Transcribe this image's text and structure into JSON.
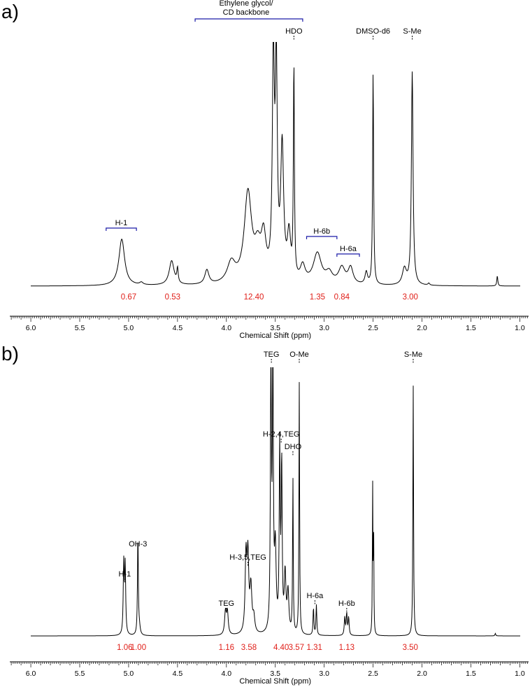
{
  "chart_data": [
    {
      "type": "line",
      "panel_label": "a)",
      "xlabel": "Chemical Shift (ppm)",
      "xlim": [
        6.0,
        1.0
      ],
      "x_ticks": [
        "6.0",
        "5.5",
        "5.0",
        "4.5",
        "4.0",
        "3.5",
        "3.0",
        "2.5",
        "2.0",
        "1.5",
        "1.0"
      ],
      "x_tick_values": [
        6.0,
        5.5,
        5.0,
        4.5,
        4.0,
        3.5,
        3.0,
        2.5,
        2.0,
        1.5,
        1.0
      ],
      "peaks": [
        {
          "ppm": 5.07,
          "h": 0.23,
          "w": 0.035
        },
        {
          "ppm": 4.87,
          "h": 0.012,
          "w": 0.02
        },
        {
          "ppm": 4.56,
          "h": 0.12,
          "w": 0.03
        },
        {
          "ppm": 4.5,
          "h": 0.07,
          "w": 0.008
        },
        {
          "ppm": 4.2,
          "h": 0.07,
          "w": 0.025
        },
        {
          "ppm": 3.95,
          "h": 0.1,
          "w": 0.05
        },
        {
          "ppm": 3.78,
          "h": 0.44,
          "w": 0.045
        },
        {
          "ppm": 3.68,
          "h": 0.14,
          "w": 0.04
        },
        {
          "ppm": 3.62,
          "h": 0.2,
          "w": 0.03
        },
        {
          "ppm": 3.52,
          "h": 1.08,
          "w": 0.012
        },
        {
          "ppm": 3.49,
          "h": 1.02,
          "w": 0.012
        },
        {
          "ppm": 3.43,
          "h": 0.65,
          "w": 0.018
        },
        {
          "ppm": 3.36,
          "h": 0.22,
          "w": 0.02
        },
        {
          "ppm": 3.31,
          "h": 1.05,
          "w": 0.006
        },
        {
          "ppm": 3.22,
          "h": 0.08,
          "w": 0.03
        },
        {
          "ppm": 3.07,
          "h": 0.15,
          "w": 0.05
        },
        {
          "ppm": 2.95,
          "h": 0.05,
          "w": 0.04
        },
        {
          "ppm": 2.82,
          "h": 0.08,
          "w": 0.04
        },
        {
          "ppm": 2.73,
          "h": 0.08,
          "w": 0.03
        },
        {
          "ppm": 2.57,
          "h": 0.06,
          "w": 0.015
        },
        {
          "ppm": 2.5,
          "h": 1.05,
          "w": 0.006
        },
        {
          "ppm": 2.18,
          "h": 0.08,
          "w": 0.025
        },
        {
          "ppm": 2.1,
          "h": 1.05,
          "w": 0.01
        },
        {
          "ppm": 1.93,
          "h": 0.01,
          "w": 0.01
        },
        {
          "ppm": 1.23,
          "h": 0.05,
          "w": 0.006
        }
      ],
      "annotations": [
        {
          "text": "H-1",
          "ppm": 5.07,
          "bracket": [
            5.23,
            4.92
          ]
        },
        {
          "text": "H-6b",
          "ppm": 3.02,
          "bracket": [
            3.18,
            2.87
          ]
        },
        {
          "text": "H-6a",
          "ppm": 2.78,
          "bracket": [
            2.87,
            2.64
          ]
        },
        {
          "text": "HDO",
          "ppm": 3.31,
          "tick": true
        },
        {
          "text": "DMSO-d6",
          "ppm": 2.5,
          "tick": true
        },
        {
          "text": "S-Me",
          "ppm": 2.1,
          "tick": true
        }
      ],
      "group_annotation": {
        "lines": [
          "Ethylene glycol/",
          "CD backbone"
        ],
        "bracket": [
          4.32,
          3.22
        ]
      },
      "integrals": [
        {
          "ppm": 5.0,
          "value": "0.67"
        },
        {
          "ppm": 4.55,
          "value": "0.53"
        },
        {
          "ppm": 3.72,
          "value": "12.40"
        },
        {
          "ppm": 3.07,
          "value": "1.35"
        },
        {
          "ppm": 2.82,
          "value": "0.84"
        },
        {
          "ppm": 2.12,
          "value": "3.00"
        }
      ]
    },
    {
      "type": "line",
      "panel_label": "b)",
      "xlabel": "Chemical Shift (ppm)",
      "xlim": [
        6.0,
        1.0
      ],
      "x_ticks": [
        "6.0",
        "5.5",
        "5.0",
        "4.5",
        "4.0",
        "3.5",
        "3.0",
        "2.5",
        "2.0",
        "1.5",
        "1.0"
      ],
      "x_tick_values": [
        6.0,
        5.5,
        5.0,
        4.5,
        4.0,
        3.5,
        3.0,
        2.5,
        2.0,
        1.5,
        1.0
      ],
      "peaks": [
        {
          "ppm": 5.05,
          "h": 0.28,
          "w": 0.006
        },
        {
          "ppm": 5.035,
          "h": 0.27,
          "w": 0.006
        },
        {
          "ppm": 4.905,
          "h": 0.4,
          "w": 0.005
        },
        {
          "ppm": 4.89,
          "h": 0.03,
          "w": 0.01
        },
        {
          "ppm": 4.01,
          "h": 0.09,
          "w": 0.01
        },
        {
          "ppm": 3.99,
          "h": 0.09,
          "w": 0.01
        },
        {
          "ppm": 3.8,
          "h": 0.3,
          "w": 0.01
        },
        {
          "ppm": 3.78,
          "h": 0.29,
          "w": 0.01
        },
        {
          "ppm": 3.75,
          "h": 0.18,
          "w": 0.012
        },
        {
          "ppm": 3.72,
          "h": 0.06,
          "w": 0.012
        },
        {
          "ppm": 3.545,
          "h": 1.08,
          "w": 0.006
        },
        {
          "ppm": 3.525,
          "h": 1.06,
          "w": 0.006
        },
        {
          "ppm": 3.5,
          "h": 0.32,
          "w": 0.01
        },
        {
          "ppm": 3.455,
          "h": 0.72,
          "w": 0.006
        },
        {
          "ppm": 3.435,
          "h": 0.66,
          "w": 0.006
        },
        {
          "ppm": 3.4,
          "h": 0.23,
          "w": 0.01
        },
        {
          "ppm": 3.37,
          "h": 0.16,
          "w": 0.01
        },
        {
          "ppm": 3.32,
          "h": 0.62,
          "w": 0.004
        },
        {
          "ppm": 3.255,
          "h": 1.0,
          "w": 0.004
        },
        {
          "ppm": 3.11,
          "h": 0.11,
          "w": 0.005
        },
        {
          "ppm": 3.08,
          "h": 0.12,
          "w": 0.005
        },
        {
          "ppm": 2.79,
          "h": 0.07,
          "w": 0.006
        },
        {
          "ppm": 2.77,
          "h": 0.085,
          "w": 0.006
        },
        {
          "ppm": 2.75,
          "h": 0.07,
          "w": 0.006
        },
        {
          "ppm": 2.505,
          "h": 0.6,
          "w": 0.003
        },
        {
          "ppm": 2.495,
          "h": 0.45,
          "w": 0.003
        },
        {
          "ppm": 2.09,
          "h": 1.0,
          "w": 0.004
        },
        {
          "ppm": 1.25,
          "h": 0.01,
          "w": 0.005
        }
      ],
      "annotations": [
        {
          "text": "H-1",
          "ppm": 5.04,
          "tick": true
        },
        {
          "text": "OH-3",
          "ppm": 4.905,
          "tick": true
        },
        {
          "text": "TEG",
          "ppm": 4.0,
          "tick": true
        },
        {
          "text": "H-3,5,TEG",
          "ppm": 3.78,
          "tick": true
        },
        {
          "text": "TEG",
          "ppm": 3.54,
          "tick": true
        },
        {
          "text": "H-2,4,TEG",
          "ppm": 3.44,
          "tick": true
        },
        {
          "text": "DHO",
          "ppm": 3.32,
          "tick": true
        },
        {
          "text": "O-Me",
          "ppm": 3.255,
          "tick": true
        },
        {
          "text": "H-6a",
          "ppm": 3.095,
          "tick": true
        },
        {
          "text": "H-6b",
          "ppm": 2.77,
          "tick": true
        },
        {
          "text": "S-Me",
          "ppm": 2.09,
          "tick": true
        }
      ],
      "integrals": [
        {
          "ppm": 5.04,
          "value": "1.06"
        },
        {
          "ppm": 4.9,
          "value": "1.00"
        },
        {
          "ppm": 4.0,
          "value": "1.16"
        },
        {
          "ppm": 3.77,
          "value": "3.58"
        },
        {
          "ppm": 3.44,
          "value": "4.40"
        },
        {
          "ppm": 3.285,
          "value": "3.57"
        },
        {
          "ppm": 3.1,
          "value": "1.31"
        },
        {
          "ppm": 2.77,
          "value": "1.13"
        },
        {
          "ppm": 2.12,
          "value": "3.50"
        }
      ]
    }
  ]
}
